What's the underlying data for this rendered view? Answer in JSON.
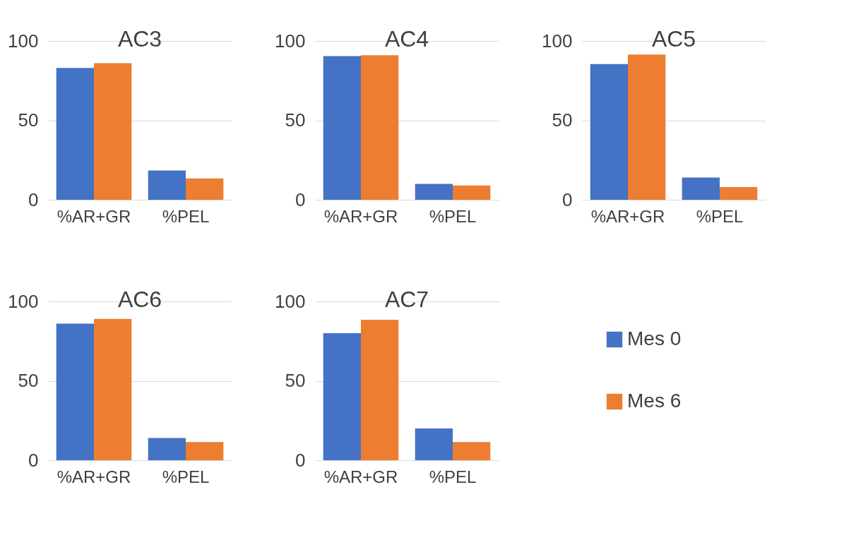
{
  "chart_data": [
    {
      "type": "bar",
      "title": "AC3",
      "categories": [
        "%AR+GR",
        "%PEL"
      ],
      "series": [
        {
          "color": "#4472c4",
          "values": [
            83,
            18.5
          ]
        },
        {
          "color": "#ed7d31",
          "values": [
            86,
            13.5
          ]
        }
      ],
      "ylim": [
        0,
        100
      ],
      "yticks": [
        0,
        50,
        100
      ],
      "grid": "y"
    },
    {
      "type": "bar",
      "title": "AC4",
      "categories": [
        "%AR+GR",
        "%PEL"
      ],
      "series": [
        {
          "color": "#4472c4",
          "values": [
            90.5,
            10
          ]
        },
        {
          "color": "#ed7d31",
          "values": [
            91,
            9
          ]
        }
      ],
      "ylim": [
        0,
        100
      ],
      "yticks": [
        0,
        50,
        100
      ],
      "grid": "y"
    },
    {
      "type": "bar",
      "title": "AC5",
      "categories": [
        "%AR+GR",
        "%PEL"
      ],
      "series": [
        {
          "color": "#4472c4",
          "values": [
            85.5,
            14
          ]
        },
        {
          "color": "#ed7d31",
          "values": [
            91.5,
            8
          ]
        }
      ],
      "ylim": [
        0,
        100
      ],
      "yticks": [
        0,
        50,
        100
      ],
      "grid": "y"
    },
    {
      "type": "bar",
      "title": "AC6",
      "categories": [
        "%AR+GR",
        "%PEL"
      ],
      "series": [
        {
          "color": "#4472c4",
          "values": [
            86,
            14
          ]
        },
        {
          "color": "#ed7d31",
          "values": [
            89,
            11.5
          ]
        }
      ],
      "ylim": [
        0,
        100
      ],
      "yticks": [
        0,
        50,
        100
      ],
      "grid": "y"
    },
    {
      "type": "bar",
      "title": "AC7",
      "categories": [
        "%AR+GR",
        "%PEL"
      ],
      "series": [
        {
          "name": "Mes 0",
          "color": "#4472c4",
          "values": [
            80,
            20
          ]
        },
        {
          "name": "Mes 6",
          "color": "#ed7d31",
          "values": [
            88.5,
            11.5
          ]
        }
      ],
      "ylim": [
        0,
        100
      ],
      "yticks": [
        0,
        50,
        100
      ],
      "grid": "y",
      "legend": "right"
    }
  ]
}
